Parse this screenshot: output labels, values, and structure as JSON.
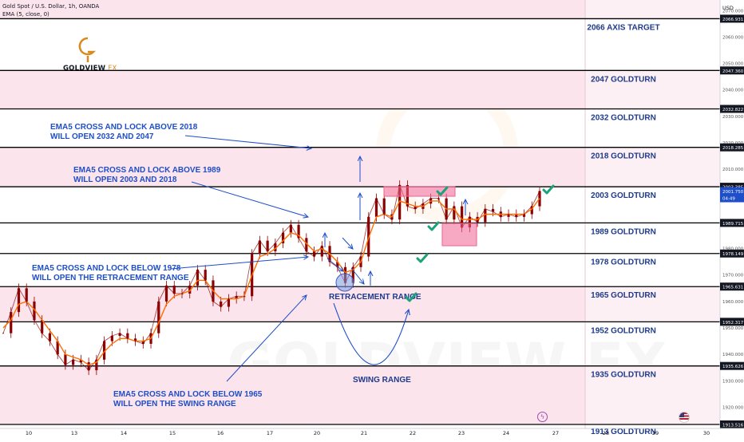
{
  "header": {
    "title": "Gold Spot / U.S. Dollar, 1h, OANDA",
    "indicator": "EMA (5, close, 0)"
  },
  "logo": {
    "brand": "GOLDVIEW",
    "suffix": "FX"
  },
  "watermark": "GOLDVIEW FX",
  "price_axis": {
    "currency": "USD",
    "last_price": "2001.750",
    "countdown": "04:49"
  },
  "colors": {
    "zone_fill": "#fce4ec",
    "zone_border": "#f8bbd0",
    "level_line": "#000000",
    "annotation": "#1e4ec8",
    "candle": "#8b0000",
    "ema": "#ff6f00",
    "check": "#1aa37a",
    "box_fill": "#f06292",
    "label_text": "#1e3a8a"
  },
  "chart_data": {
    "type": "line",
    "title": "Gold Spot / U.S. Dollar, 1h, OANDA",
    "xlabel": "",
    "ylabel": "",
    "x_ticks": [
      "10",
      "13",
      "14",
      "15",
      "16",
      "17",
      "20",
      "21",
      "22",
      "23",
      "24",
      "27",
      "28",
      "29",
      "30"
    ],
    "y_ticks": [
      2070,
      2060,
      2050,
      2040,
      2030,
      2020,
      2010,
      1980,
      1970,
      1960,
      1950,
      1940,
      1930,
      1920
    ],
    "ylim": [
      1912,
      2074
    ],
    "grid": false,
    "levels": [
      {
        "value": 2066.931,
        "price_label": "2066.931",
        "name": "2066 AXIS TARGET"
      },
      {
        "value": 2047.36,
        "price_label": "2047.360",
        "name": "2047 GOLDTURN"
      },
      {
        "value": 2032.822,
        "price_label": "2032.822",
        "name": "2032 GOLDTURN"
      },
      {
        "value": 2018.285,
        "price_label": "2018.285",
        "name": "2018 GOLDTURN"
      },
      {
        "value": 2003.385,
        "price_label": "2003.385",
        "name": "2003 GOLDTURN"
      },
      {
        "value": 1989.715,
        "price_label": "1989.715",
        "name": "1989 GOLDTURN"
      },
      {
        "value": 1978.149,
        "price_label": "1978.149",
        "name": "1978 GOLDTURN"
      },
      {
        "value": 1965.631,
        "price_label": "1965.631",
        "name": "1965 GOLDTURN"
      },
      {
        "value": 1952.317,
        "price_label": "1952.317",
        "name": "1952 GOLDTURN"
      },
      {
        "value": 1935.626,
        "price_label": "1935.626",
        "name": "1935 GOLDTURN"
      },
      {
        "value": 1913.516,
        "price_label": "1913.516",
        "name": "1913 GOLDTURN"
      }
    ],
    "zones": [
      {
        "from": 2066.931,
        "to": 2074
      },
      {
        "from": 2032.822,
        "to": 2047.36
      },
      {
        "from": 2003.385,
        "to": 2018.285
      },
      {
        "from": 1952.317,
        "to": 1965.631
      },
      {
        "from": 1913.516,
        "to": 1935.626
      }
    ],
    "series": [
      {
        "values": [
          1948,
          1956,
          1965,
          1960,
          1953,
          1948,
          1945,
          1940,
          1936,
          1938,
          1937,
          1934,
          1938,
          1945,
          1947,
          1948,
          1946,
          1945,
          1944,
          1948,
          1960,
          1966,
          1963,
          1963,
          1966,
          1972,
          1968,
          1960,
          1958,
          1961,
          1962,
          1962,
          1978,
          1983,
          1979,
          1982,
          1986,
          1989,
          1984,
          1979,
          1977,
          1981,
          1975,
          1973,
          1967,
          1973,
          1977,
          1992,
          1999,
          1993,
          1991,
          2004,
          1996,
          1995,
          1997,
          1999,
          1999,
          1991,
          1996,
          1988,
          1992,
          1990,
          1995,
          1994,
          1992,
          1993,
          1992,
          1993,
          1996,
          2001.75
        ]
      },
      {
        "values": [
          1950,
          1953,
          1959,
          1960,
          1957,
          1953,
          1949,
          1945,
          1940,
          1939,
          1938,
          1936,
          1937,
          1941,
          1944,
          1946,
          1946,
          1945,
          1945,
          1946,
          1952,
          1959,
          1962,
          1963,
          1964,
          1968,
          1968,
          1964,
          1961,
          1961,
          1961,
          1962,
          1970,
          1977,
          1978,
          1980,
          1983,
          1986,
          1985,
          1982,
          1979,
          1980,
          1978,
          1975,
          1971,
          1972,
          1975,
          1984,
          1992,
          1993,
          1992,
          1998,
          1997,
          1996,
          1996,
          1998,
          1998,
          1995,
          1995,
          1991,
          1991,
          1991,
          1993,
          1993,
          1993,
          1993,
          1993,
          1993,
          1995,
          1999
        ]
      }
    ]
  },
  "annotations": {
    "note1_line1": "EMA5 CROSS AND LOCK ABOVE 2018",
    "note1_line2": "WILL OPEN 2032 AND 2047",
    "note2_line1": "EMA5 CROSS AND LOCK ABOVE 1989",
    "note2_line2": "WILL OPEN 2003 AND 2018",
    "note3_line1": "EMA5 CROSS AND LOCK BELOW 1978",
    "note3_line2": "WILL OPEN THE RETRACEMENT RANGE",
    "note4_line1": "EMA5 CROSS AND LOCK BELOW 1965",
    "note4_line2": "WILL OPEN THE SWING RANGE",
    "retracement": "RETRACEMENT RANGE",
    "swing": "SWING RANGE"
  }
}
